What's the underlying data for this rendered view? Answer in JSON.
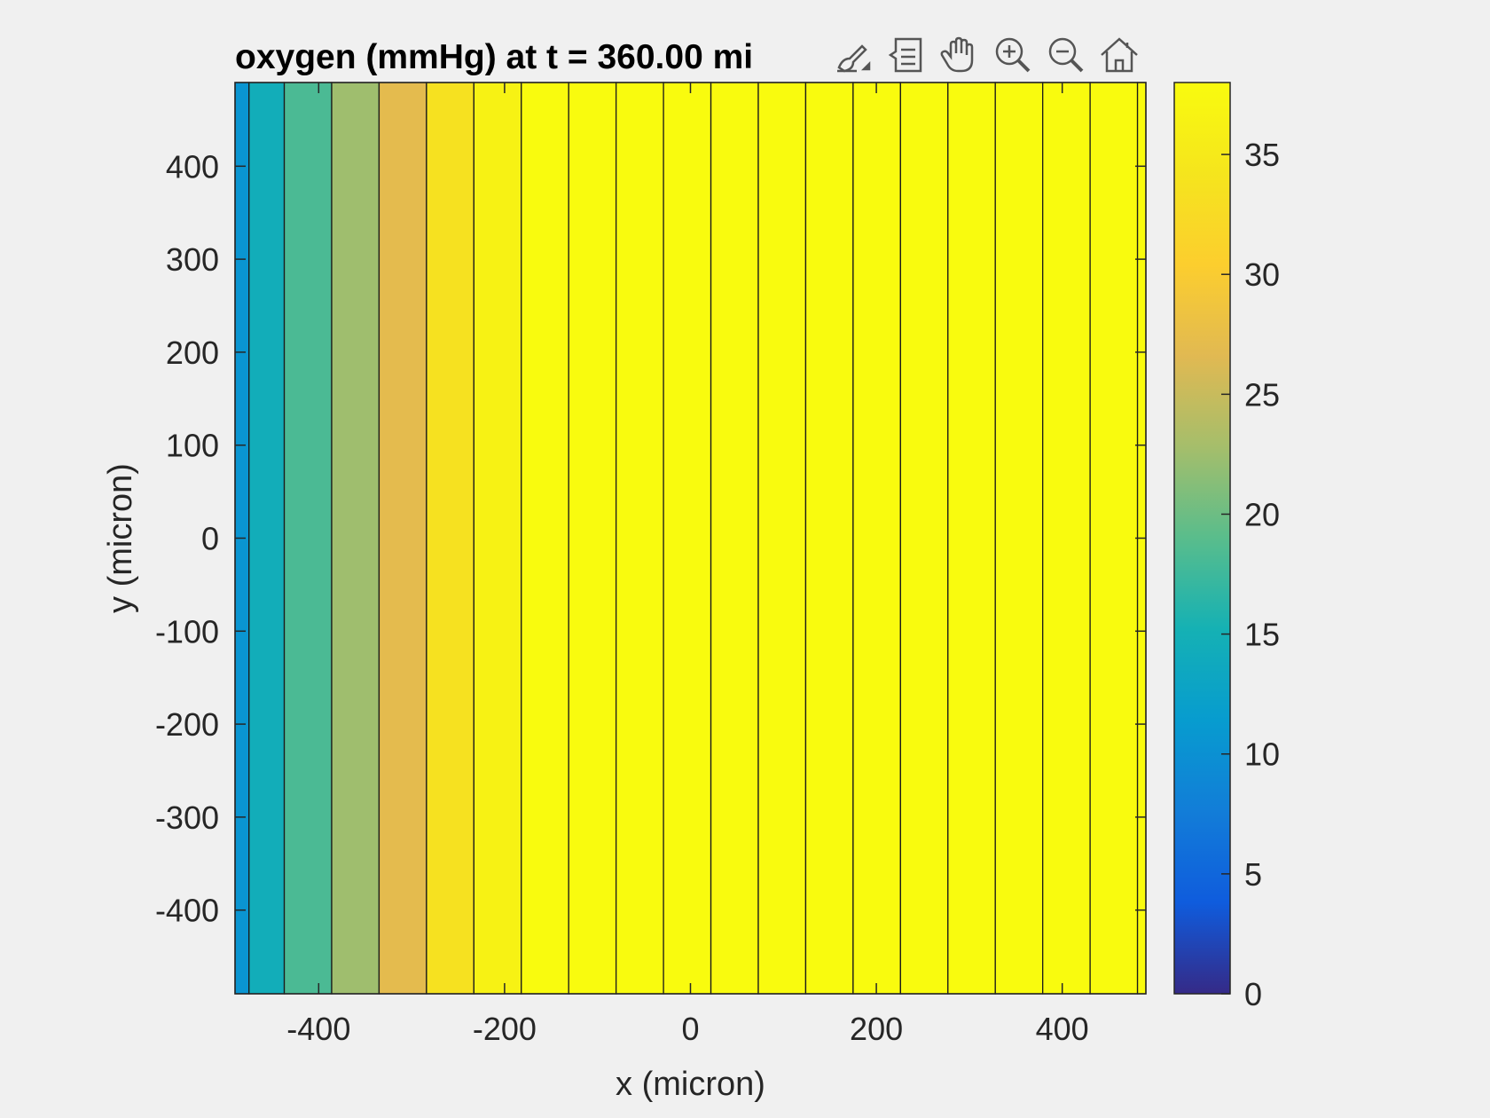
{
  "window": {
    "background": "#f0f0f0"
  },
  "toolbar": {
    "buttons": [
      {
        "name": "brush-data-button",
        "icon": "brush-icon"
      },
      {
        "name": "data-tips-button",
        "icon": "datatip-icon"
      },
      {
        "name": "pan-button",
        "icon": "hand-icon"
      },
      {
        "name": "zoom-in-button",
        "icon": "zoom-in-icon"
      },
      {
        "name": "zoom-out-button",
        "icon": "zoom-out-icon"
      },
      {
        "name": "restore-view-button",
        "icon": "home-icon"
      }
    ]
  },
  "chart_data": {
    "type": "heatmap",
    "title": "oxygen (mmHg) at t = 360.00 mi",
    "xlabel": "x (micron)",
    "ylabel": "y (micron)",
    "xlim": [
      -490,
      490
    ],
    "ylim": [
      -490,
      490
    ],
    "xticks": [
      -400,
      -200,
      0,
      200,
      400
    ],
    "yticks": [
      -400,
      -300,
      -200,
      -100,
      0,
      100,
      200,
      300,
      400
    ],
    "x_edges": [
      -490,
      -475,
      -437,
      -386,
      -335,
      -284,
      -233,
      -182,
      -131,
      -80,
      -29,
      22,
      73,
      124,
      175,
      226,
      277,
      328,
      379,
      430,
      481,
      490
    ],
    "values": [
      10.5,
      14.5,
      18.2,
      22.5,
      27.0,
      33.5,
      36.5,
      38,
      38,
      38,
      38,
      38,
      38,
      38,
      38,
      38,
      38,
      38,
      38,
      38,
      38
    ],
    "colorbar": {
      "clim": [
        0,
        38
      ],
      "ticks": [
        0,
        5,
        10,
        15,
        20,
        25,
        30,
        35
      ]
    },
    "colormap": "parula",
    "grid": false
  }
}
